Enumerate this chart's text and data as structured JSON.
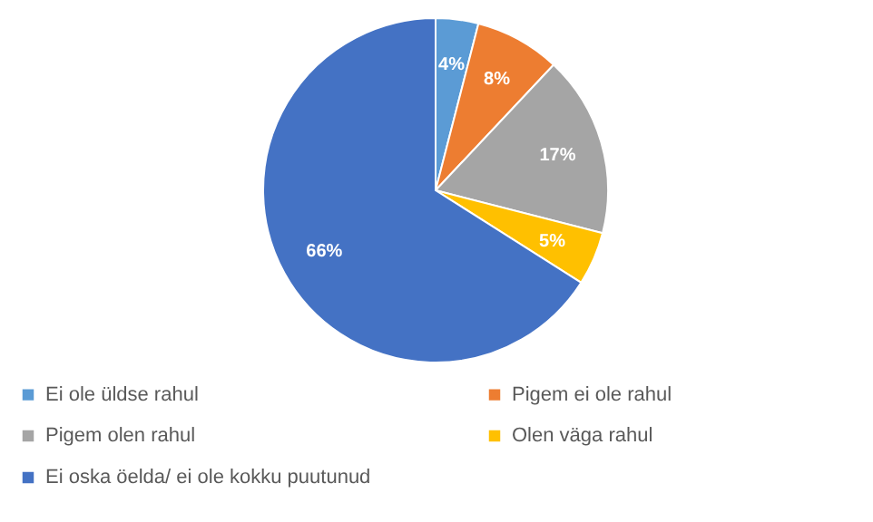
{
  "chart_data": {
    "type": "pie",
    "categories": [
      "Ei ole üldse rahul",
      "Pigem ei ole rahul",
      "Pigem olen rahul",
      "Olen väga rahul",
      "Ei oska öelda/ ei ole kokku puutunud"
    ],
    "values": [
      4,
      8,
      17,
      5,
      66
    ],
    "colors": [
      "#5b9bd5",
      "#ed7d31",
      "#a5a5a5",
      "#ffc000",
      "#4472c4"
    ],
    "value_labels": [
      "4%",
      "8%",
      "17%",
      "5%",
      "66%"
    ],
    "legend": "bottom"
  }
}
